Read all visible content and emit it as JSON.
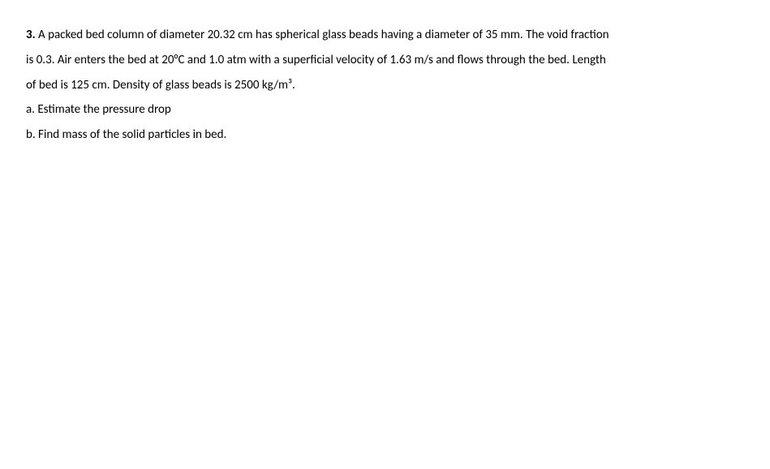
{
  "problem": {
    "number": "3.",
    "line1_part1": " A packed bed column of diameter 20.32 cm has spherical glass beads having a diameter of 35 mm. The void fraction",
    "line2": "is 0.3. Air enters the bed at 20°C and  1.0 atm with a superficial velocity of 1.63 m/s and flows through the bed. Length",
    "line3": "of bed is 125 cm. Density of glass beads is 2500 kg/m³.",
    "part_a": "a. Estimate the pressure drop",
    "part_b": "b. Find mass of the solid particles in bed."
  },
  "styling": {
    "background_color": "#ffffff",
    "text_color": "#000000",
    "font_family": "Calibri, Arial, sans-serif",
    "font_size": 15,
    "line_height": 2.05
  }
}
